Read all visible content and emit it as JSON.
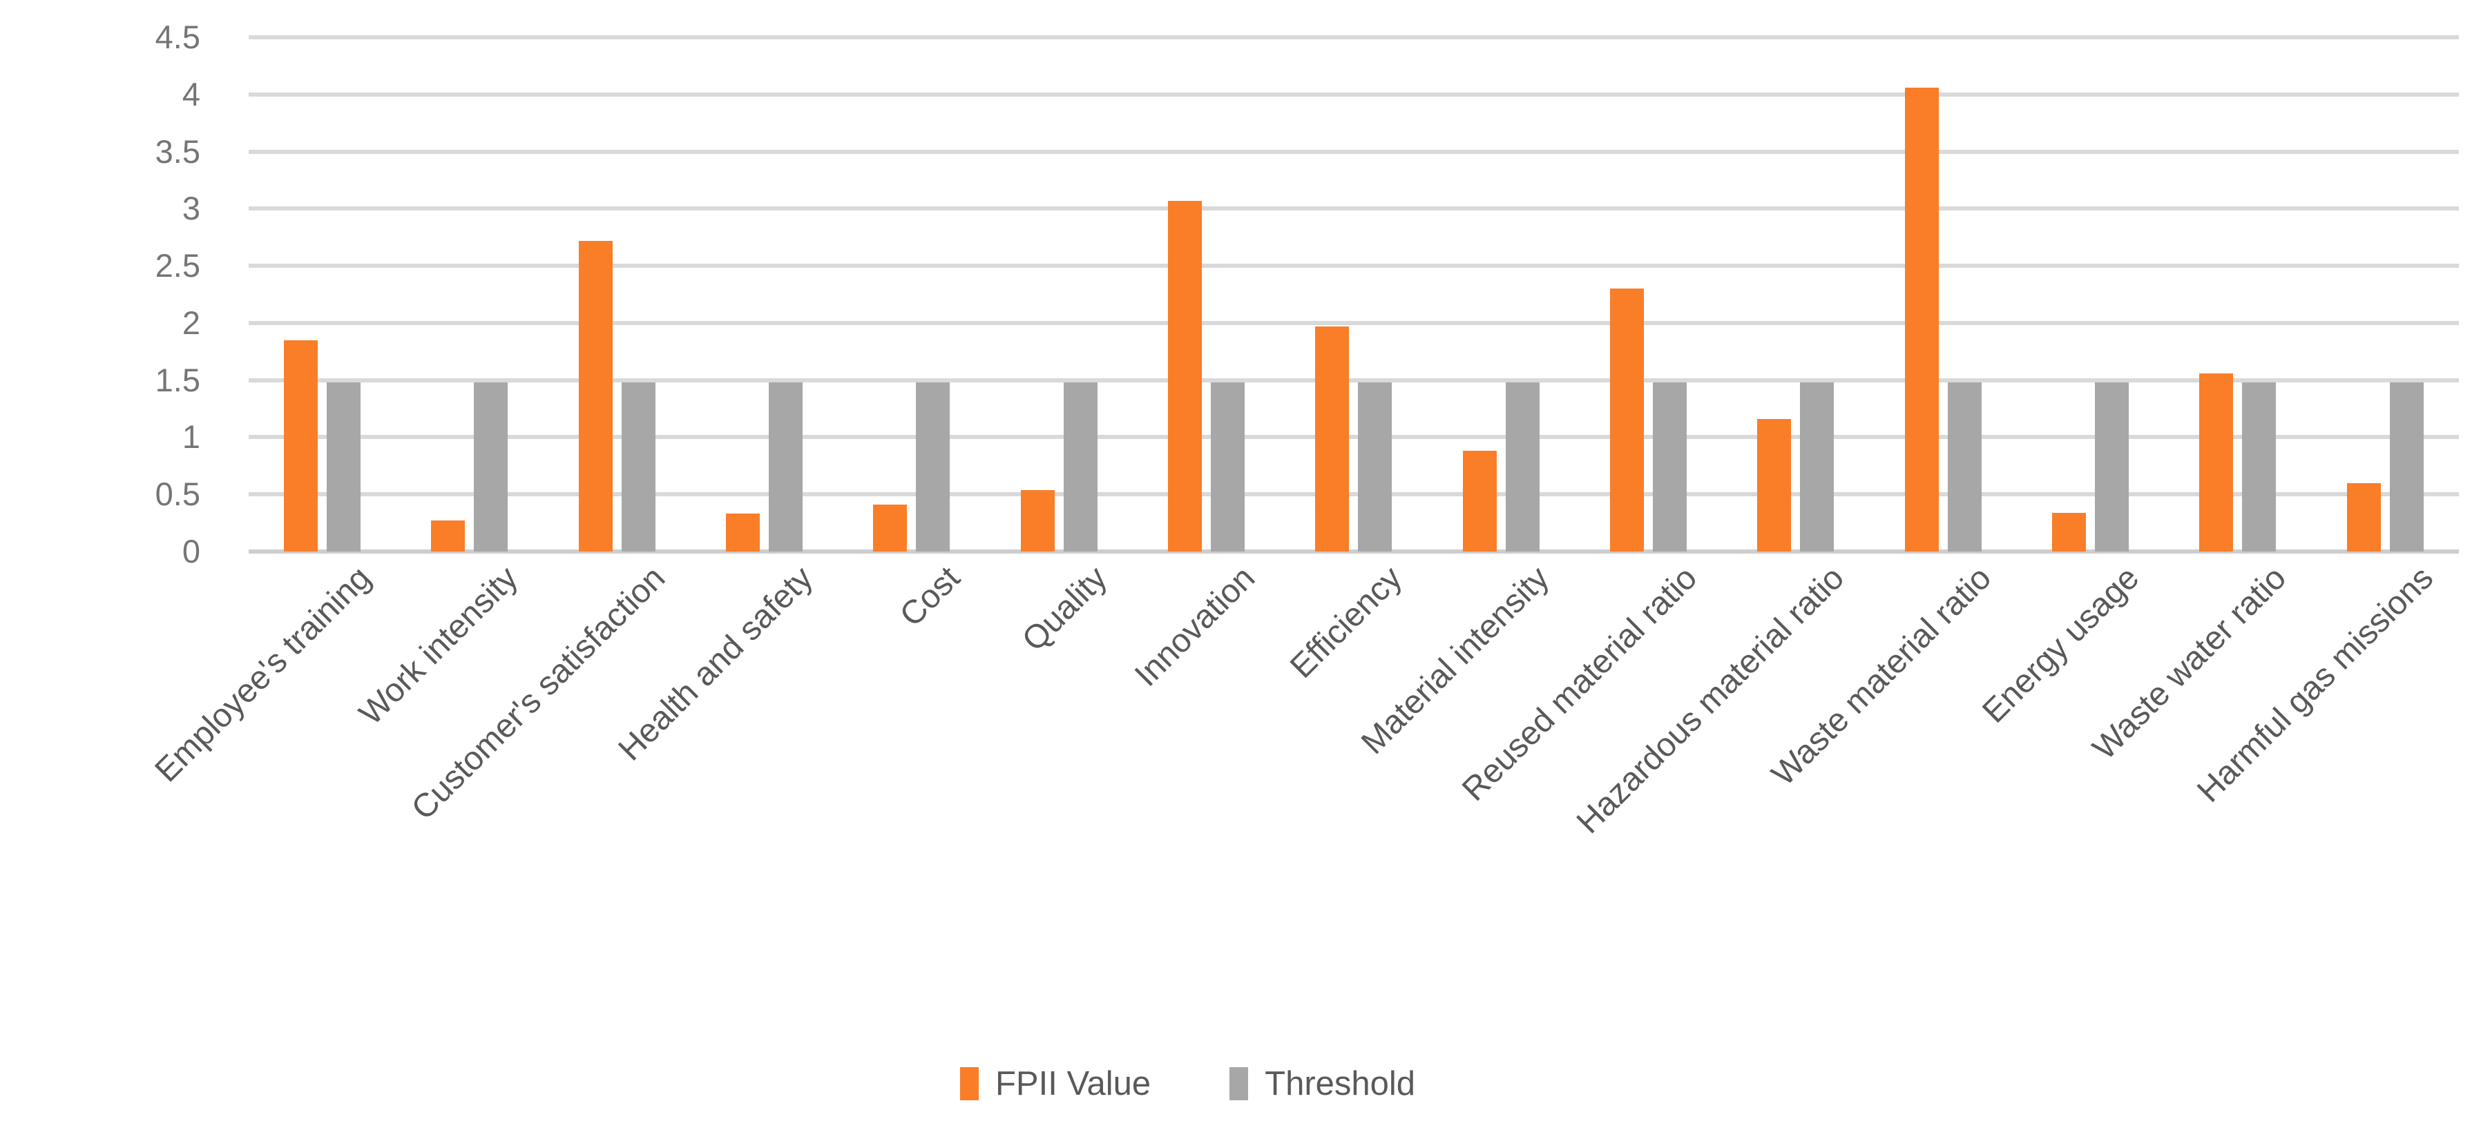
{
  "chart_data": {
    "type": "bar",
    "title": "",
    "categories": [
      "Employee's training",
      "Work intensity",
      "Customer's satisfaction",
      "Health and safety",
      "Cost",
      "Quality",
      "Innovation",
      "Efficiency",
      "Material intensity",
      "Reused material ratio",
      "Hazardous material ratio",
      "Waste material ratio",
      "Energy usage",
      "Waste water ratio",
      "Harmful gas missions"
    ],
    "series": [
      {
        "name": "FPII Value",
        "color": "#FA7D28",
        "values": [
          1.85,
          0.27,
          2.72,
          0.33,
          0.41,
          0.54,
          3.07,
          1.97,
          0.88,
          2.3,
          1.16,
          4.06,
          0.34,
          1.56,
          0.6
        ]
      },
      {
        "name": "Threshold",
        "color": "#A7A7A7",
        "values": [
          1.48,
          1.48,
          1.48,
          1.48,
          1.48,
          1.48,
          1.48,
          1.48,
          1.48,
          1.48,
          1.48,
          1.48,
          1.48,
          1.48,
          1.48
        ]
      }
    ],
    "xlabel": "",
    "ylabel": "",
    "ylim": [
      0,
      4.5
    ],
    "ytick_step": 0.5,
    "ytick_labels": [
      "0",
      "0.5",
      "1",
      "1.5",
      "2",
      "2.5",
      "3",
      "3.5",
      "4",
      "4.5"
    ],
    "grid": "horizontal",
    "gridline_color": "#D9D9D9",
    "axis_line_color": "#CDCDCD",
    "ytick_label_color": "#757575",
    "category_label_color": "#595959",
    "category_label_rotation_deg": 45,
    "legend_position": "bottom-center"
  },
  "legend": {
    "items": [
      {
        "label": "FPII Value",
        "color": "#FA7D28"
      },
      {
        "label": "Threshold",
        "color": "#A7A7A7"
      }
    ]
  }
}
